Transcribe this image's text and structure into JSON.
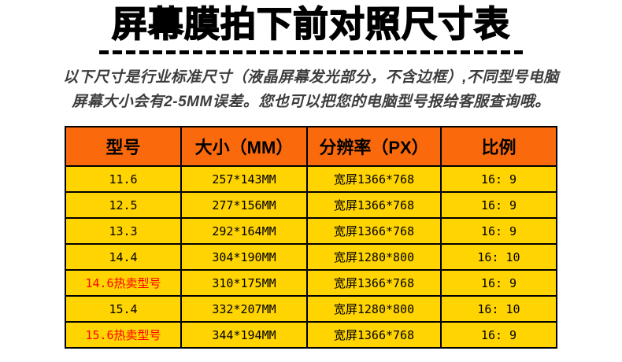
{
  "header": {
    "title": "屏幕膜拍下前对照尺寸表",
    "description_line1": "以下尺寸是行业标准尺寸（液晶屏幕发光部分，不含边框）,不同型号电脑",
    "description_line2": "屏幕大小会有2-5MM误差。您也可以把您的电脑型号报给客服查询哦。"
  },
  "colors": {
    "background": "#FFFFFF",
    "header_bg": "#FA6A0D",
    "row_bg": "#FFD400",
    "border": "#000000",
    "hot_text": "#FF0000",
    "title_text": "#000000",
    "description_text": "#3C3C3C"
  },
  "chart_data": {
    "type": "table",
    "title": "屏幕膜拍下前对照尺寸表",
    "headers": [
      "型号",
      "大小（MM）",
      "分辨率（PX）",
      "比例"
    ],
    "rows": [
      [
        "11.6",
        "257*143MM",
        "宽屏1366*768",
        "16: 9"
      ],
      [
        "12.5",
        "277*156MM",
        "宽屏1366*768",
        "16: 9"
      ],
      [
        "13.3",
        "292*164MM",
        "宽屏1366*768",
        "16: 9"
      ],
      [
        "14.4",
        "304*190MM",
        "宽屏1280*800",
        "16: 10"
      ],
      [
        "14.6热卖型号",
        "310*175MM",
        "宽屏1366*768",
        "16: 9"
      ],
      [
        "15.4",
        "332*207MM",
        "宽屏1280*800",
        "16: 10"
      ],
      [
        "15.6热卖型号",
        "344*194MM",
        "宽屏1366*768",
        "16: 9"
      ]
    ],
    "hot_row_indices": [
      4,
      6
    ]
  }
}
